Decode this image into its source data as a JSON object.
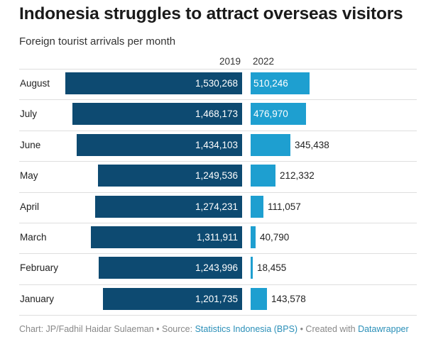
{
  "title": "Indonesia struggles to attract overseas visitors",
  "subtitle": "Foreign tourist arrivals per month",
  "footer": {
    "chart_credit": "Chart: JP/Fadhil Haidar Sulaeman",
    "sep1": " • ",
    "source_prefix": "Source: ",
    "source_link": "Statistics Indonesia (BPS)",
    "sep2": " • ",
    "created_prefix": "Created with ",
    "created_link": "Datawrapper"
  },
  "colors": {
    "series_2019": "#0d4a71",
    "series_2022": "#1e9fd0"
  },
  "chart_data": {
    "type": "bar",
    "orientation": "horizontal",
    "categories": [
      "August",
      "July",
      "June",
      "May",
      "April",
      "March",
      "February",
      "January"
    ],
    "series": [
      {
        "name": "2019",
        "values": [
          1530268,
          1468173,
          1434103,
          1249536,
          1274231,
          1311911,
          1243996,
          1201735
        ]
      },
      {
        "name": "2022",
        "values": [
          510246,
          476970,
          345438,
          212332,
          111057,
          40790,
          18455,
          143578
        ]
      }
    ],
    "value_labels": {
      "2019": [
        "1,530,268",
        "1,468,173",
        "1,434,103",
        "1,249,536",
        "1,274,231",
        "1,311,911",
        "1,243,996",
        "1,201,735"
      ],
      "2022": [
        "510,246",
        "476,970",
        "345,438",
        "212,332",
        "111,057",
        "40,790",
        "18,455",
        "143,578"
      ]
    },
    "title": "Indonesia struggles to attract overseas visitors",
    "subtitle": "Foreign tourist arrivals per month",
    "grid": false
  }
}
